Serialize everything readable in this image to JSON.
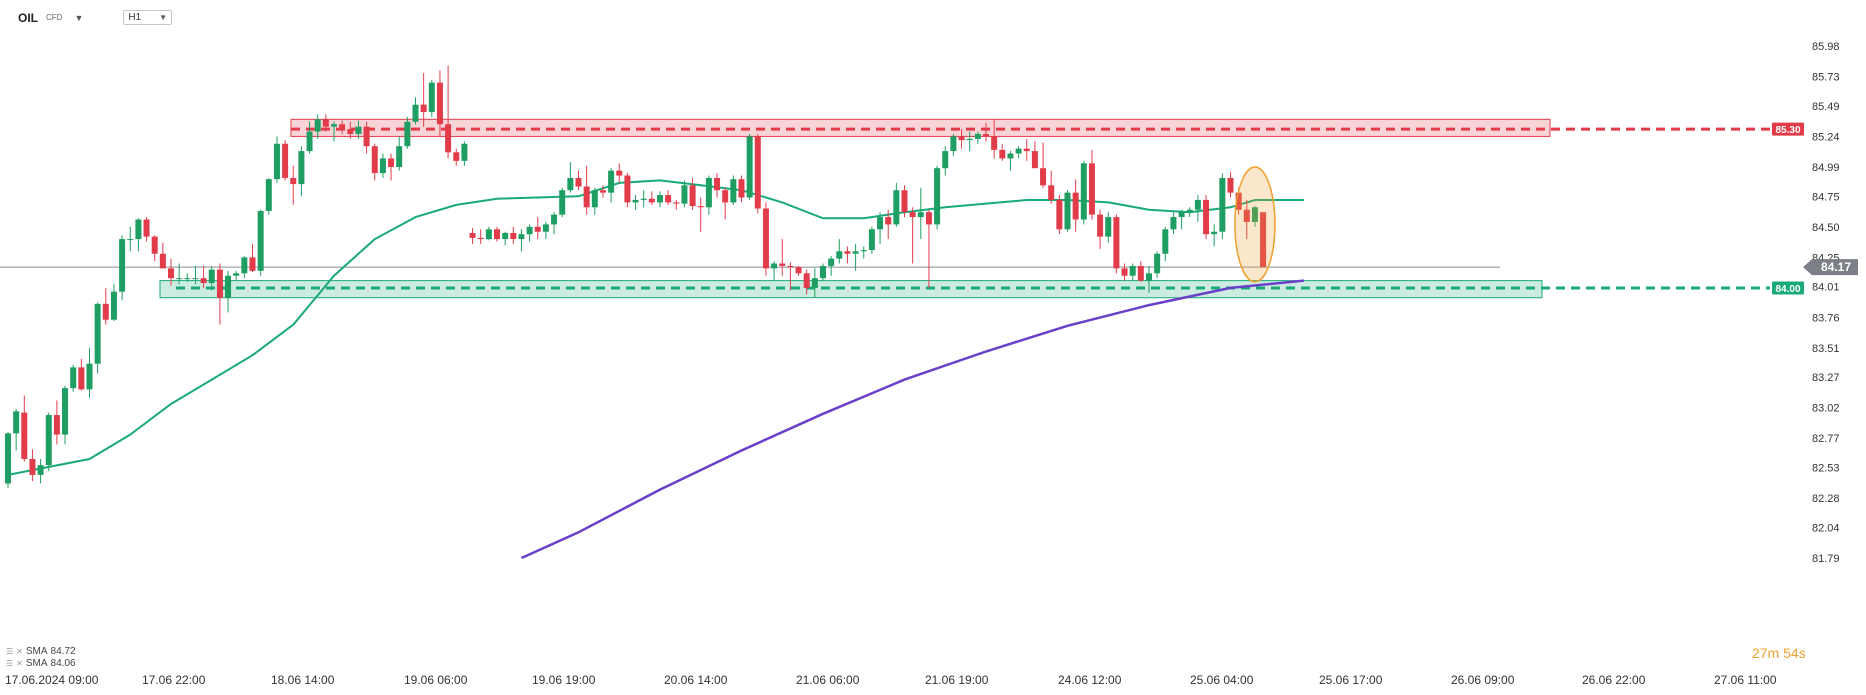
{
  "header": {
    "symbol": "OIL",
    "symbol_type": "CFD",
    "timeframe": "H1"
  },
  "indicators": [
    {
      "name": "SMA",
      "value": "84.72",
      "color": "#1aaa77"
    },
    {
      "name": "SMA",
      "value": "84.06",
      "color": "#6a3fc9"
    }
  ],
  "countdown": {
    "minutes": "27",
    "minutes_unit": "m",
    "seconds": "54",
    "seconds_unit": "s"
  },
  "colors": {
    "bull": "#1e9e62",
    "bear": "#e23c4b",
    "resistance": "#e23c4b",
    "support": "#1aaa77",
    "sma_fast": "#1aaa77",
    "sma_slow": "#6a3fc9",
    "highlight": "#f0a030",
    "current_price_bg": "#7c7f86"
  },
  "chart_data": {
    "type": "candlestick",
    "instrument": "OIL",
    "interval": "H1",
    "y_ticks": [
      "85.98",
      "85.73",
      "85.49",
      "85.24",
      "84.99",
      "84.75",
      "84.50",
      "84.25",
      "84.01",
      "83.76",
      "83.51",
      "83.27",
      "83.02",
      "82.77",
      "82.53",
      "82.28",
      "82.04",
      "81.79"
    ],
    "ylim": [
      81.79,
      85.98
    ],
    "x_ticks": [
      "17.06.2024  09:00",
      "17.06  22:00",
      "18.06  14:00",
      "19.06  06:00",
      "19.06  19:00",
      "20.06  14:00",
      "21.06  06:00",
      "21.06  19:00",
      "24.06  12:00",
      "25.06  04:00",
      "25.06  17:00",
      "26.06  09:00",
      "26.06  22:00",
      "27.06  11:00"
    ],
    "resistance": {
      "price": 85.3,
      "label": "85.30",
      "zone": [
        85.24,
        85.38
      ]
    },
    "support": {
      "price": 84.0,
      "label": "84.00",
      "zone": [
        83.92,
        84.06
      ]
    },
    "current_price": {
      "value": 84.17,
      "label": "84.17"
    },
    "candles": [
      [
        82.4,
        82.82,
        82.36,
        82.81
      ],
      [
        82.81,
        83.01,
        82.67,
        82.99
      ],
      [
        82.98,
        83.12,
        82.58,
        82.6
      ],
      [
        82.6,
        82.68,
        82.42,
        82.47
      ],
      [
        82.47,
        82.6,
        82.4,
        82.55
      ],
      [
        82.55,
        82.98,
        82.5,
        82.96
      ],
      [
        82.96,
        83.08,
        82.72,
        82.8
      ],
      [
        82.8,
        83.2,
        82.72,
        83.18
      ],
      [
        83.18,
        83.37,
        83.15,
        83.35
      ],
      [
        83.35,
        83.42,
        83.16,
        83.17
      ],
      [
        83.17,
        83.51,
        83.1,
        83.38
      ],
      [
        83.38,
        83.88,
        83.3,
        83.87
      ],
      [
        83.87,
        84.0,
        83.7,
        83.74
      ],
      [
        83.74,
        84.03,
        83.73,
        83.97
      ],
      [
        83.97,
        84.43,
        83.9,
        84.4
      ],
      [
        84.4,
        84.5,
        84.3,
        84.4
      ],
      [
        84.4,
        84.57,
        84.3,
        84.56
      ],
      [
        84.56,
        84.58,
        84.38,
        84.42
      ],
      [
        84.42,
        84.43,
        84.22,
        84.28
      ],
      [
        84.28,
        84.37,
        84.16,
        84.16
      ],
      [
        84.16,
        84.24,
        84.02,
        84.08
      ],
      [
        84.08,
        84.2,
        84.03,
        84.08
      ],
      [
        84.08,
        84.12,
        84.05,
        84.08
      ],
      [
        84.08,
        84.18,
        84.03,
        84.08
      ],
      [
        84.08,
        84.18,
        84.0,
        84.04
      ],
      [
        84.04,
        84.18,
        83.98,
        84.15
      ],
      [
        84.15,
        84.2,
        83.7,
        83.92
      ],
      [
        83.92,
        84.14,
        83.8,
        84.1
      ],
      [
        84.1,
        84.14,
        84.06,
        84.12
      ],
      [
        84.12,
        84.26,
        84.08,
        84.25
      ],
      [
        84.25,
        84.36,
        84.13,
        84.14
      ],
      [
        84.14,
        84.64,
        84.1,
        84.63
      ],
      [
        84.63,
        84.9,
        84.6,
        84.89
      ],
      [
        84.89,
        85.24,
        84.86,
        85.18
      ],
      [
        85.18,
        85.21,
        84.88,
        84.9
      ],
      [
        84.9,
        85.0,
        84.68,
        84.85
      ],
      [
        84.85,
        85.16,
        84.75,
        85.12
      ],
      [
        85.12,
        85.36,
        85.1,
        85.28
      ],
      [
        85.28,
        85.42,
        85.22,
        85.38
      ],
      [
        85.38,
        85.42,
        85.28,
        85.32
      ],
      [
        85.32,
        85.36,
        85.2,
        85.34
      ],
      [
        85.34,
        85.37,
        85.26,
        85.3
      ],
      [
        85.3,
        85.36,
        85.22,
        85.26
      ],
      [
        85.26,
        85.37,
        85.22,
        85.32
      ],
      [
        85.32,
        85.36,
        85.1,
        85.16
      ],
      [
        85.16,
        85.18,
        84.88,
        84.94
      ],
      [
        84.94,
        85.1,
        84.9,
        85.06
      ],
      [
        85.06,
        85.1,
        84.88,
        84.99
      ],
      [
        84.99,
        85.24,
        84.96,
        85.16
      ],
      [
        85.16,
        85.4,
        85.14,
        85.36
      ],
      [
        85.36,
        85.56,
        85.34,
        85.5
      ],
      [
        85.5,
        85.76,
        85.32,
        85.44
      ],
      [
        85.44,
        85.7,
        85.4,
        85.68
      ],
      [
        85.68,
        85.78,
        85.24,
        85.34
      ],
      [
        85.34,
        85.82,
        85.06,
        85.11
      ],
      [
        85.11,
        85.14,
        85.0,
        85.04
      ],
      [
        85.04,
        85.2,
        85.0,
        85.18
      ],
      [
        84.45,
        84.49,
        84.36,
        84.41
      ],
      [
        84.41,
        84.48,
        84.36,
        84.4
      ],
      [
        84.4,
        84.5,
        84.39,
        84.48
      ],
      [
        84.48,
        84.5,
        84.38,
        84.4
      ],
      [
        84.4,
        84.46,
        84.35,
        84.45
      ],
      [
        84.45,
        84.5,
        84.36,
        84.4
      ],
      [
        84.4,
        84.48,
        84.3,
        84.44
      ],
      [
        84.44,
        84.52,
        84.38,
        84.5
      ],
      [
        84.5,
        84.58,
        84.4,
        84.46
      ],
      [
        84.46,
        84.54,
        84.4,
        84.52
      ],
      [
        84.52,
        84.62,
        84.44,
        84.6
      ],
      [
        84.6,
        84.82,
        84.58,
        84.8
      ],
      [
        84.8,
        85.03,
        84.78,
        84.9
      ],
      [
        84.9,
        84.96,
        84.8,
        84.83
      ],
      [
        84.83,
        85.0,
        84.6,
        84.66
      ],
      [
        84.66,
        84.82,
        84.6,
        84.8
      ],
      [
        84.8,
        84.84,
        84.74,
        84.78
      ],
      [
        84.78,
        84.98,
        84.7,
        84.96
      ],
      [
        84.96,
        85.02,
        84.86,
        84.92
      ],
      [
        84.92,
        84.94,
        84.66,
        84.7
      ],
      [
        84.7,
        84.76,
        84.64,
        84.72
      ],
      [
        84.72,
        84.8,
        84.66,
        84.73
      ],
      [
        84.73,
        84.79,
        84.68,
        84.7
      ],
      [
        84.7,
        84.79,
        84.66,
        84.76
      ],
      [
        84.76,
        84.8,
        84.68,
        84.7
      ],
      [
        84.7,
        84.72,
        84.64,
        84.69
      ],
      [
        84.69,
        84.88,
        84.66,
        84.84
      ],
      [
        84.84,
        84.9,
        84.64,
        84.67
      ],
      [
        84.67,
        84.74,
        84.46,
        84.66
      ],
      [
        84.66,
        84.92,
        84.6,
        84.9
      ],
      [
        84.9,
        84.94,
        84.74,
        84.8
      ],
      [
        84.8,
        84.82,
        84.56,
        84.7
      ],
      [
        84.7,
        84.92,
        84.68,
        84.89
      ],
      [
        84.89,
        84.92,
        84.7,
        84.74
      ],
      [
        84.74,
        85.26,
        84.72,
        85.24
      ],
      [
        85.24,
        85.26,
        84.61,
        84.65
      ],
      [
        84.65,
        84.7,
        84.1,
        84.16
      ],
      [
        84.16,
        84.22,
        84.06,
        84.2
      ],
      [
        84.2,
        84.4,
        84.1,
        84.18
      ],
      [
        84.18,
        84.21,
        83.98,
        84.17
      ],
      [
        84.17,
        84.18,
        84.1,
        84.12
      ],
      [
        84.12,
        84.15,
        83.95,
        84.0
      ],
      [
        84.0,
        84.16,
        83.92,
        84.08
      ],
      [
        84.08,
        84.2,
        84.06,
        84.18
      ],
      [
        84.18,
        84.26,
        84.1,
        84.24
      ],
      [
        84.24,
        84.4,
        84.2,
        84.3
      ],
      [
        84.3,
        84.34,
        84.2,
        84.28
      ],
      [
        84.28,
        84.36,
        84.14,
        84.3
      ],
      [
        84.3,
        84.34,
        84.24,
        84.31
      ],
      [
        84.31,
        84.5,
        84.28,
        84.48
      ],
      [
        84.48,
        84.62,
        84.36,
        84.58
      ],
      [
        84.58,
        84.64,
        84.4,
        84.52
      ],
      [
        84.52,
        84.86,
        84.5,
        84.8
      ],
      [
        84.8,
        84.84,
        84.58,
        84.62
      ],
      [
        84.62,
        84.66,
        84.2,
        84.58
      ],
      [
        84.58,
        84.82,
        84.4,
        84.62
      ],
      [
        84.62,
        84.64,
        84.0,
        84.52
      ],
      [
        84.52,
        85.0,
        84.48,
        84.98
      ],
      [
        84.98,
        85.16,
        84.92,
        85.12
      ],
      [
        85.12,
        85.26,
        85.08,
        85.24
      ],
      [
        85.24,
        85.3,
        85.14,
        85.21
      ],
      [
        85.21,
        85.28,
        85.12,
        85.22
      ],
      [
        85.22,
        85.28,
        85.18,
        85.26
      ],
      [
        85.26,
        85.35,
        85.2,
        85.24
      ],
      [
        85.24,
        85.38,
        85.06,
        85.13
      ],
      [
        85.13,
        85.18,
        85.04,
        85.06
      ],
      [
        85.06,
        85.12,
        84.96,
        85.1
      ],
      [
        85.1,
        85.16,
        85.06,
        85.14
      ],
      [
        85.14,
        85.22,
        85.04,
        85.12
      ],
      [
        85.12,
        85.2,
        85.0,
        84.98
      ],
      [
        84.98,
        85.19,
        84.82,
        84.84
      ],
      [
        84.84,
        84.96,
        84.69,
        84.72
      ],
      [
        84.72,
        84.76,
        84.44,
        84.48
      ],
      [
        84.48,
        84.8,
        84.46,
        84.78
      ],
      [
        84.78,
        84.89,
        84.46,
        84.56
      ],
      [
        84.56,
        85.04,
        84.52,
        85.02
      ],
      [
        85.02,
        85.13,
        84.56,
        84.6
      ],
      [
        84.6,
        84.64,
        84.32,
        84.42
      ],
      [
        84.42,
        84.62,
        84.37,
        84.58
      ],
      [
        84.58,
        84.6,
        84.12,
        84.16
      ],
      [
        84.16,
        84.2,
        84.06,
        84.1
      ],
      [
        84.1,
        84.2,
        84.06,
        84.18
      ],
      [
        84.18,
        84.22,
        84.05,
        84.06
      ],
      [
        84.06,
        84.18,
        83.96,
        84.12
      ],
      [
        84.12,
        84.3,
        84.08,
        84.28
      ],
      [
        84.28,
        84.5,
        84.22,
        84.48
      ],
      [
        84.48,
        84.62,
        84.44,
        84.58
      ],
      [
        84.58,
        84.64,
        84.48,
        84.62
      ],
      [
        84.62,
        84.66,
        84.58,
        84.64
      ],
      [
        84.64,
        84.76,
        84.54,
        84.72
      ],
      [
        84.72,
        84.76,
        84.4,
        84.44
      ],
      [
        84.44,
        84.52,
        84.34,
        84.46
      ],
      [
        84.46,
        84.94,
        84.4,
        84.9
      ],
      [
        84.9,
        84.95,
        84.74,
        84.78
      ],
      [
        84.78,
        84.82,
        84.6,
        84.64
      ],
      [
        84.64,
        84.72,
        84.4,
        84.54
      ],
      [
        84.54,
        84.67,
        84.5,
        84.66
      ],
      [
        84.62,
        84.62,
        84.17,
        84.17
      ]
    ],
    "sma_fast": {
      "value": 84.72,
      "points": [
        [
          0,
          82.47
        ],
        [
          10,
          82.6
        ],
        [
          15,
          82.8
        ],
        [
          20,
          83.05
        ],
        [
          25,
          83.25
        ],
        [
          30,
          83.45
        ],
        [
          35,
          83.7
        ],
        [
          40,
          84.1
        ],
        [
          45,
          84.4
        ],
        [
          50,
          84.58
        ],
        [
          55,
          84.68
        ],
        [
          60,
          84.73
        ],
        [
          70,
          84.75
        ],
        [
          75,
          84.86
        ],
        [
          80,
          84.88
        ],
        [
          85,
          84.84
        ],
        [
          90,
          84.8
        ],
        [
          95,
          84.7
        ],
        [
          100,
          84.57
        ],
        [
          105,
          84.57
        ],
        [
          110,
          84.62
        ],
        [
          115,
          84.66
        ],
        [
          120,
          84.69
        ],
        [
          125,
          84.72
        ],
        [
          130,
          84.72
        ],
        [
          135,
          84.7
        ],
        [
          140,
          84.64
        ],
        [
          145,
          84.62
        ],
        [
          150,
          84.66
        ],
        [
          153,
          84.72
        ],
        [
          159,
          84.72
        ]
      ]
    },
    "sma_slow": {
      "value": 84.06,
      "points": [
        [
          63,
          81.79
        ],
        [
          70,
          82.0
        ],
        [
          80,
          82.35
        ],
        [
          90,
          82.67
        ],
        [
          100,
          82.97
        ],
        [
          110,
          83.25
        ],
        [
          120,
          83.48
        ],
        [
          130,
          83.69
        ],
        [
          140,
          83.86
        ],
        [
          150,
          84.0
        ],
        [
          159,
          84.06
        ]
      ]
    }
  }
}
